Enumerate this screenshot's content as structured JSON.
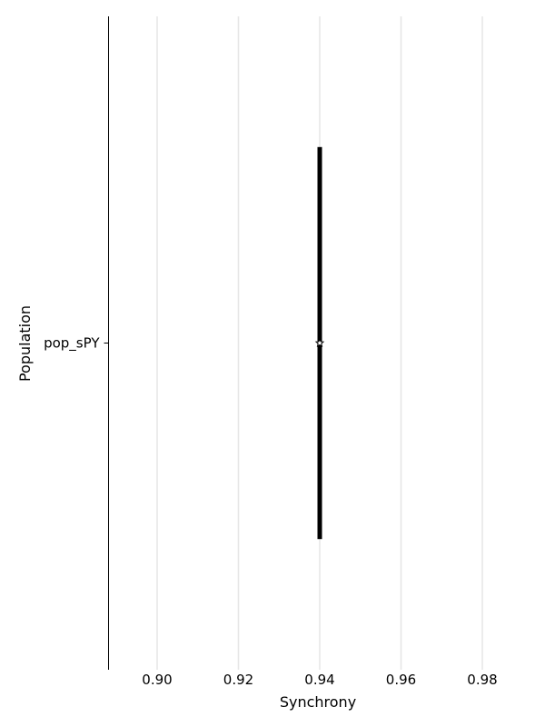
{
  "chart_data": {
    "type": "violin",
    "orientation": "horizontal",
    "xlabel": "Synchrony",
    "ylabel": "Population",
    "xlim": [
      0.888,
      1.0
    ],
    "xticks": [
      0.9,
      0.92,
      0.94,
      0.96,
      0.98
    ],
    "xtick_labels": [
      "0.90",
      "0.92",
      "0.94",
      "0.96",
      "0.98"
    ],
    "categories": [
      "pop_sPY"
    ],
    "series": [
      {
        "category": "pop_sPY",
        "values": [
          0.94
        ],
        "median": 0.94,
        "range": [
          0.94,
          0.94
        ]
      }
    ],
    "grid": "x",
    "legend": "none",
    "colors": {
      "bar": "#000000",
      "grid": "#e6e6e6",
      "axis": "#000000",
      "median_marker_fill": "#ffffff"
    }
  }
}
